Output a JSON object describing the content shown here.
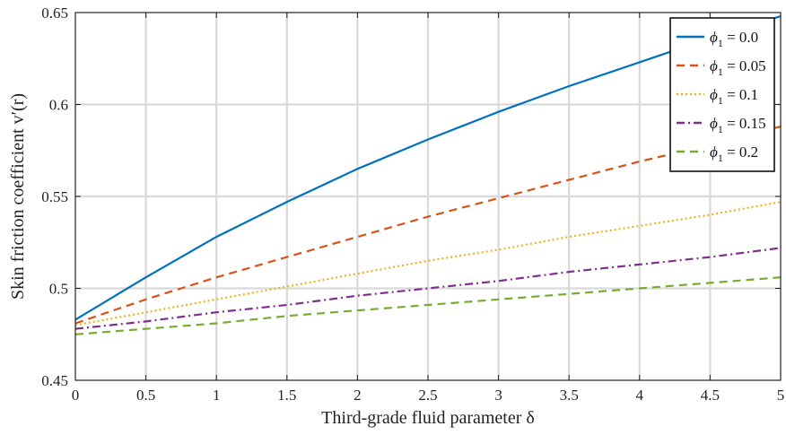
{
  "chart_data": {
    "type": "line",
    "xlabel": "Third-grade fluid parameter δ",
    "ylabel": "Skin friction coefficient v′(r)",
    "xlim": [
      0,
      5
    ],
    "ylim": [
      0.45,
      0.65
    ],
    "xticks": [
      "0",
      "0.5",
      "1",
      "1.5",
      "2",
      "2.5",
      "3",
      "3.5",
      "4",
      "4.5",
      "5"
    ],
    "yticks": [
      "0.45",
      "0.5",
      "0.55",
      "0.6",
      "0.65"
    ],
    "grid": true,
    "legend_position": "top-right",
    "x": [
      0,
      0.5,
      1,
      1.5,
      2,
      2.5,
      3,
      3.5,
      4,
      4.5,
      5
    ],
    "series": [
      {
        "name": "ϕ1 = 0.0",
        "label_base": "ϕ",
        "label_sub": "1",
        "label_rest": " = 0.0",
        "color": "#0072BD",
        "dash": "",
        "values": [
          0.483,
          0.506,
          0.528,
          0.547,
          0.565,
          0.581,
          0.596,
          0.61,
          0.623,
          0.636,
          0.648
        ]
      },
      {
        "name": "ϕ1 = 0.05",
        "label_base": "ϕ",
        "label_sub": "1",
        "label_rest": " = 0.05",
        "color": "#D95319",
        "dash": "9,6",
        "values": [
          0.481,
          0.494,
          0.506,
          0.517,
          0.528,
          0.539,
          0.549,
          0.559,
          0.569,
          0.578,
          0.588
        ]
      },
      {
        "name": "ϕ1 = 0.1",
        "label_base": "ϕ",
        "label_sub": "1",
        "label_rest": " = 0.1",
        "color": "#EDB120",
        "dash": "2,3",
        "values": [
          0.48,
          0.487,
          0.494,
          0.501,
          0.508,
          0.515,
          0.521,
          0.528,
          0.534,
          0.54,
          0.547
        ]
      },
      {
        "name": "ϕ1 = 0.15",
        "label_base": "ϕ",
        "label_sub": "1",
        "label_rest": " = 0.15",
        "color": "#7E2F8E",
        "dash": "9,4,2,4",
        "values": [
          0.478,
          0.482,
          0.487,
          0.491,
          0.496,
          0.5,
          0.504,
          0.509,
          0.513,
          0.517,
          0.522
        ]
      },
      {
        "name": "ϕ1 = 0.2",
        "label_base": "ϕ",
        "label_sub": "1",
        "label_rest": " = 0.2",
        "color": "#77AC30",
        "dash": "9,6",
        "values": [
          0.475,
          0.478,
          0.481,
          0.485,
          0.488,
          0.491,
          0.494,
          0.497,
          0.5,
          0.503,
          0.506
        ]
      }
    ]
  }
}
